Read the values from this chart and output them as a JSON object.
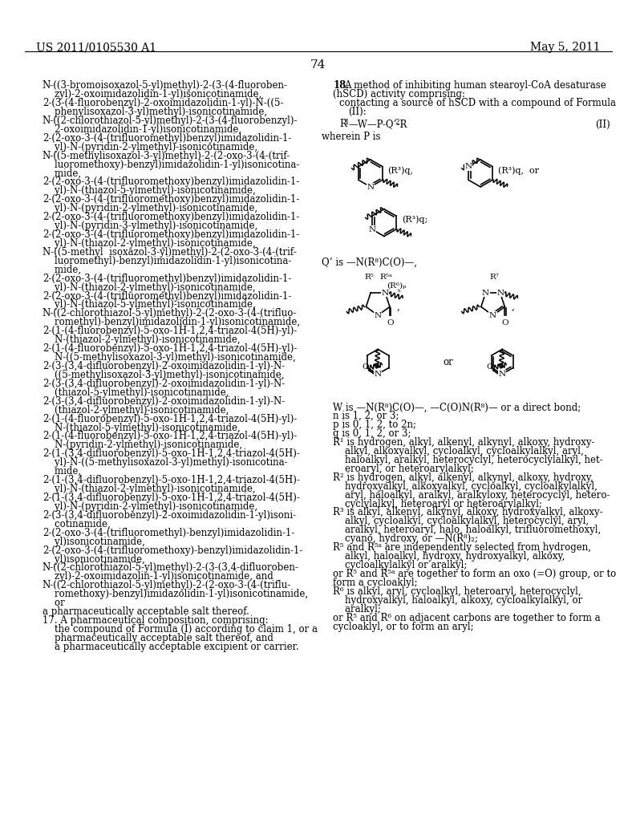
{
  "header_left": "US 2011/0105530 A1",
  "header_right": "May 5, 2011",
  "page_number": "74",
  "background_color": "#ffffff",
  "text_color": "#000000",
  "left_column_text": [
    "N-((3-bromoisoxazol-5-yl)methyl)-2-(3-(4-fluoroben-",
    "    zyl)-2-oxoimidazolidin-1-yl)isonicotinamide,",
    "2-(3-(4-fluorobenzyl)-2-oxoimidazolidin-1-yl)-N-((5-",
    "    phenylisoxazol-3-yl)methyl)-isonicotinamide,",
    "N-((2-chlorothiazol-5-yl)methyl)-2-(3-(4-fluorobenzyl)-",
    "    2-oxoimidazolidin-1-yl)isonicotinamide,",
    "2-(2-oxo-3-(4-(trifluoromethyl)benzyl)imidazolidin-1-",
    "    yl)-N-(pyridin-2-ylmethyl)-isonicotinamide,",
    "N-((5-methylisoxazol-3-yl)methyl)-2-(2-oxo-3-(4-(trif-",
    "    luoromethoxy)-benzyl)imidazolidin-1-yl)isonicotina-",
    "    mide,",
    "2-(2-oxo-3-(4-(trifluoromethoxy)benzyl)imidazolidin-1-",
    "    yl)-N-(thiazol-5-ylmethyl)-isonicotinamide,",
    "2-(2-oxo-3-(4-(trifluoromethoxy)benzyl)imidazolidin-1-",
    "    yl)-N-(pyridin-2-ylmethyl)-isonicotinamide,",
    "2-(2-oxo-3-(4-(trifluoromethoxy)benzyl)imidazolidin-1-",
    "    yl)-N-(pyridin-3-ylmethyl)-isonicotinamide,",
    "2-(2-oxo-3-(4-(trifluoromethoxy)benzyl)imidazolidin-1-",
    "    yl)-N-(thiazol-2-ylmethyl)-isonicotinamide,",
    "N-((5-methyl  isoxazol-3-yl)methyl)-2-(2-oxo-3-(4-(trif-",
    "    luoromethyl)-benzyl)imidazolidin-1-yl)isonicotina-",
    "    mide,",
    "2-(2-oxo-3-(4-(trifluoromethyl)benzyl)imidazolidin-1-",
    "    yl)-N-(thiazol-2-ylmethyl)-isonicotinamide,",
    "2-(2-oxo-3-(4-(trifluoromethyl)benzyl)imidazolidin-1-",
    "    yl)-N-(thiazol-5-ylmethyl)-isonicotinamide,",
    "N-((2-chlorothiazol-5-yl)methyl)-2-(2-oxo-3-(4-(trifluo-",
    "    romethyl)-benzyl)imidazolidin-1-yl)isonicotinamide,",
    "2-(1-(4-fluorobenzyl)-5-oxo-1H-1,2,4-triazol-4(5H)-yl)-",
    "    N-(thiazol-2-ylmethyl)-isonicotinamide,",
    "2-(1-(4-fluorobenzyl)-5-oxo-1H-1,2,4-triazol-4(5H)-yl)-",
    "    N-((5-methylisoxazol-3-yl)methyl)-isonicotinamide,",
    "2-(3-(3,4-difluorobenzyl)-2-oxoimidazolidin-1-yl)-N-",
    "    ((5-methylisoxazol-3-yl)methyl)-isonicotinamide,",
    "2-(3-(3,4-difluorobenzyl)-2-oxoimidazolidin-1-yl)-N-",
    "    (thiazol-5-ylmethyl)-isonicotinamide,",
    "2-(3-(3,4-difluorobenzyl)-2-oxoimidazolidin-1-yl)-N-",
    "    (thiazol-2-ylmethyl)-isonicotinamide,",
    "2-(1-(4-fluorobenzyl)-5-oxo-1H-1,2,4-triazol-4(5H)-yl)-",
    "    N-(thiazol-5-ylmethyl)-isonicotinamide,",
    "2-(1-(4-fluorobenzyl)-5-oxo-1H-1,2,4-triazol-4(5H)-yl)-",
    "    N-(pyridin-2-ylmethyl)-isonicotinamide,",
    "2-(1-(3,4-difluorobenzyl)-5-oxo-1H-1,2,4-triazol-4(5H)-",
    "    yl)-N-((5-methylisoxazol-3-yl)methyl)-isonicotina-",
    "    mide,",
    "2-(1-(3,4-difluorobenzyl)-5-oxo-1H-1,2,4-triazol-4(5H)-",
    "    yl)-N-(thiazol-2-ylmethyl)-isonicotinamide,",
    "2-(1-(3,4-difluorobenzyl)-5-oxo-1H-1,2,4-triazol-4(5H)-",
    "    yl)-N-(pyridin-2-ylmethyl)-isonicotinamide,",
    "2-(3-(3,4-difluorobenzyl)-2-oxoimidazolidin-1-yl)isoni-",
    "    cotinamide,",
    "2-(2-oxo-3-(4-(trifluoromethyl)-benzyl)imidazolidin-1-",
    "    yl)isonicotinamide,",
    "2-(2-oxo-3-(4-(trifluoromethoxy)-benzyl)imidazolidin-1-",
    "    yl)isonicotinamide,",
    "N-((2-chlorothiazol-5-yl)methyl)-2-(3-(3,4-difluoroben-",
    "    zyl)-2-oxoimidazolin-1-yl)isonicotinamide, and",
    "N-((2-chlorothiazol-5-yl)methyl)-2-(2-oxo-3-(4-(triflu-",
    "    romethoxy)-benzyl)imidazolidin-1-yl)isonicotinamide,",
    "    or",
    "a pharmaceutically acceptable salt thereof.",
    "17. A pharmaceutical composition, comprising:",
    "    the compound of Formula (I) according to claim 1, or a",
    "    pharmaceutically acceptable salt thereof, and",
    "    a pharmaceutically acceptable excipient or carrier."
  ],
  "right_desc_lines": [
    "W is —N(R⁸)C(O)—, —C(O)N(R⁸)— or a direct bond;",
    "n is 1, 2, or 3;",
    "p is 0, 1, 2, to 2n;",
    "q is 0, 1, 2, or 3;",
    "R¹ is hydrogen, alkyl, alkenyl, alkynyl, alkoxy, hydroxy-",
    "    alkyl, alkoxyalkyl, cycloalkyl, cycloalkylalkyl, aryl,",
    "    haloalkyl, aralkyl, heterocyclyl, heterocyclylalkyl, het-",
    "    eroaryl, or heteroarylalkyl;",
    "R² is hydrogen, alkyl, alkenyl, alkynyl, alkoxy, hydroxy,",
    "    hydroxyalkyl, alkoxyalkyl, cycloalkyl, cycloalkylalkyl,",
    "    aryl, haloalkyl, aralkyl, aralkyloxy, heterocyclyl, hetero-",
    "    cyclylalkyl, heteroaryl or heteroarylalkyl;",
    "R³ is alkyl, alkenyl, alkynyl, alkoxy, hydroxyalkyl, alkoxy-",
    "    alkyl, cycloalkyl, cycloalkylalkyl, heterocyclyl, aryl,",
    "    aralkyl, heteroaryl, halo, haloalkyl, trifluoromethoxyl,",
    "    cyano, hydroxy, or —N(R⁸)₂;",
    "R⁵ and R⁵ᵃ are independently selected from hydrogen,",
    "    alkyl, haloalkyl, hydroxy, hydroxyalkyl, alkoxy,",
    "    cycloalkylalkyl or aralkyl;",
    "or R⁵ and R⁵ᵃ are together to form an oxo (=O) group, or to",
    "form a cycloaklyl;",
    "R⁶ is alkyl, aryl, cycloalkyl, heteroaryl, heterocyclyl,",
    "    hydroxyalkyl, haloalkyl, alkoxy, cycloalkylalkyl, or",
    "    aralkyl;",
    "or R⁵ and R⁶ on adjacent carbons are together to form a",
    "cycloaklyl, or to form an aryl;"
  ]
}
